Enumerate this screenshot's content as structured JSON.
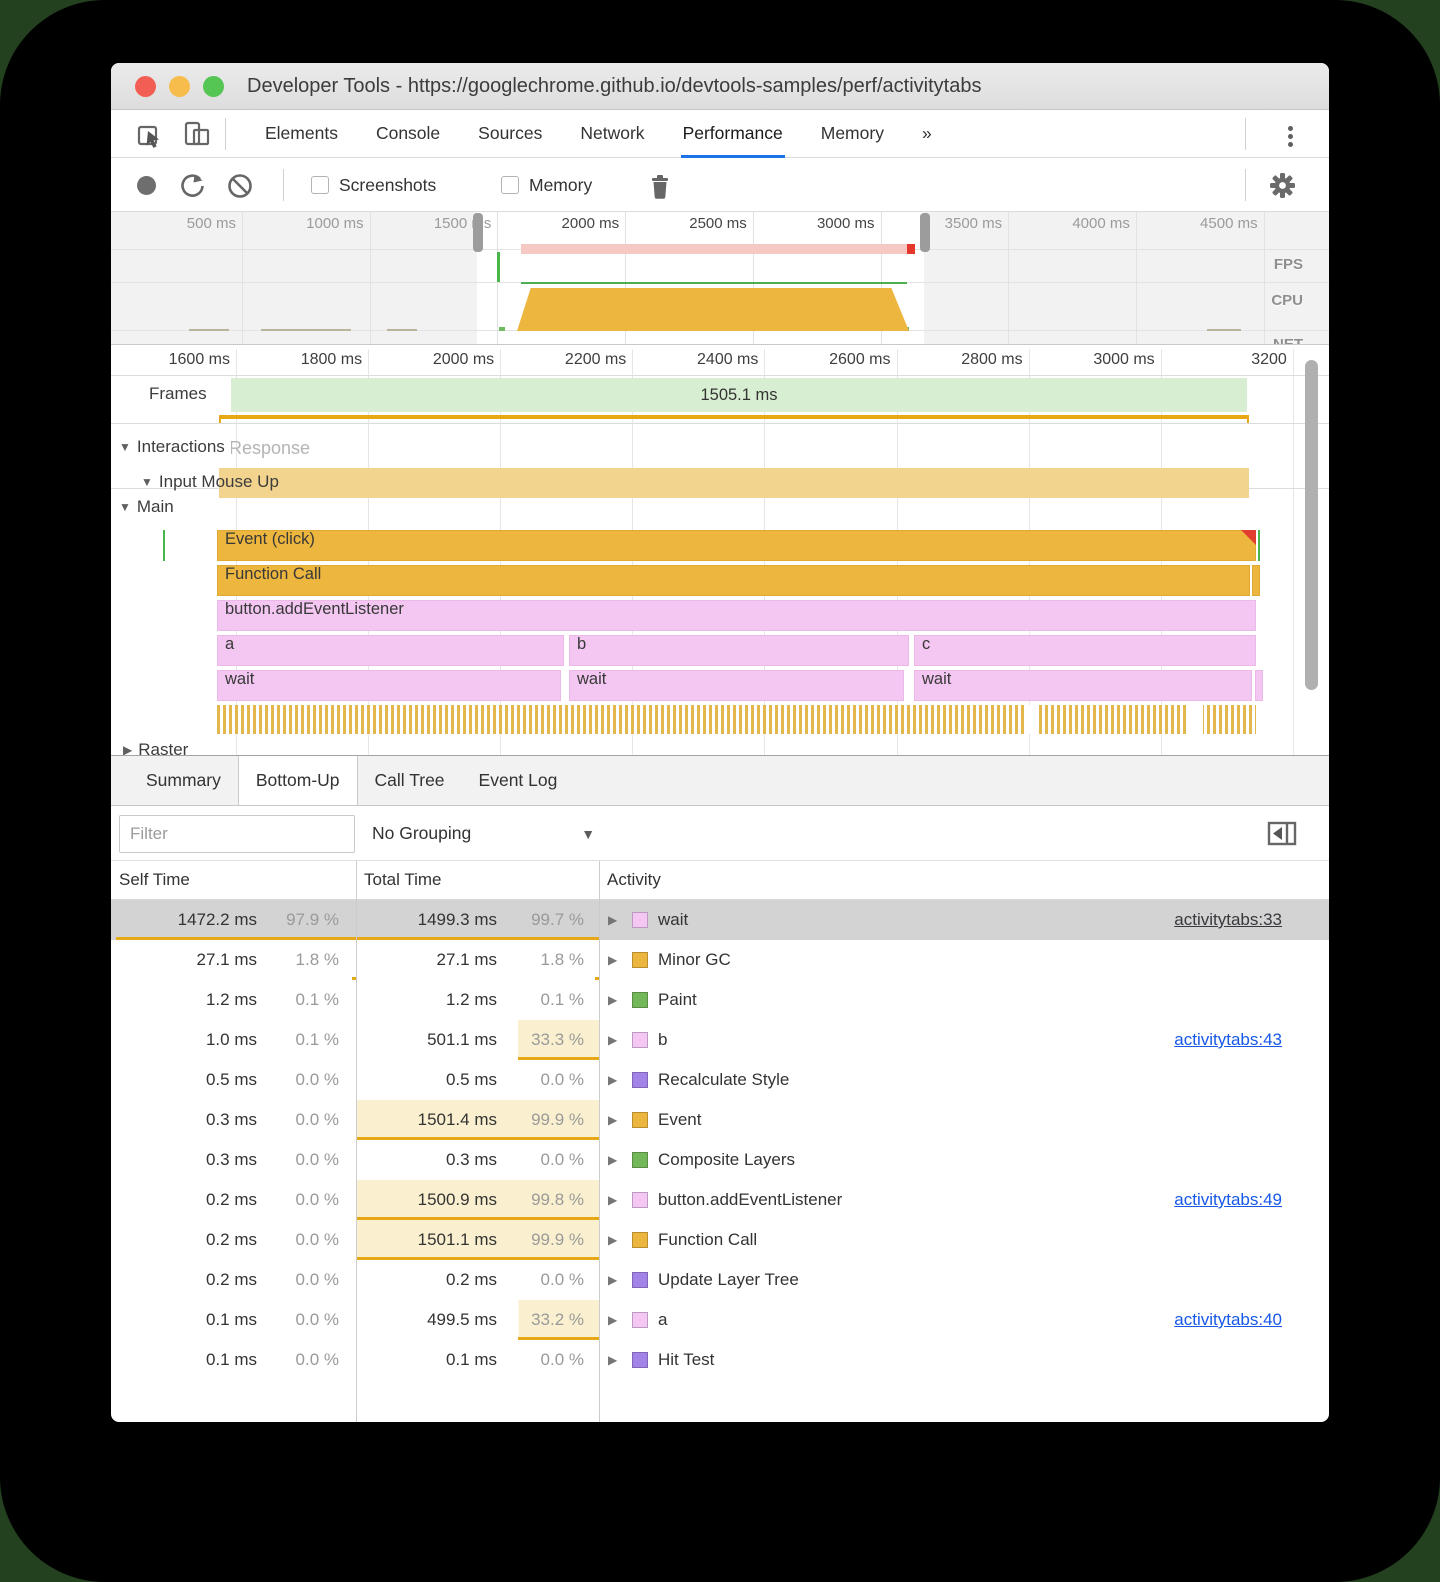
{
  "window": {
    "title": "Developer Tools - https://googlechrome.github.io/devtools-samples/perf/activitytabs"
  },
  "main_tabs": {
    "items": [
      "Elements",
      "Console",
      "Sources",
      "Network",
      "Performance",
      "Memory",
      "»"
    ],
    "active": "Performance"
  },
  "toolbar": {
    "screenshots_label": "Screenshots",
    "memory_label": "Memory"
  },
  "overview": {
    "ticks": [
      "500 ms",
      "1000 ms",
      "1500 ms",
      "2000 ms",
      "2500 ms",
      "3000 ms",
      "3500 ms",
      "4000 ms",
      "4500 ms"
    ],
    "ticks_in_selection": [
      3,
      4,
      5
    ],
    "lanes": [
      "FPS",
      "CPU",
      "NET"
    ]
  },
  "flame": {
    "ticks": [
      "1600 ms",
      "1800 ms",
      "2000 ms",
      "2200 ms",
      "2400 ms",
      "2600 ms",
      "2800 ms",
      "3000 ms",
      "3200"
    ],
    "frames_label": "Frames",
    "frames_value": "1505.1 ms",
    "interactions_label": "Interactions",
    "interactions_ghost": "Response",
    "input_label": "Input Mouse Up",
    "main_label": "Main",
    "raster_label": "Raster",
    "bars": {
      "event": "Event (click)",
      "func": "Function Call",
      "listener": "button.addEventListener",
      "a": "a",
      "b": "b",
      "c": "c",
      "wait1": "wait",
      "wait2": "wait",
      "wait3": "wait"
    }
  },
  "bottom_tabs": {
    "items": [
      "Summary",
      "Bottom-Up",
      "Call Tree",
      "Event Log"
    ],
    "active": "Bottom-Up"
  },
  "filter": {
    "placeholder": "Filter",
    "grouping": "No Grouping"
  },
  "table": {
    "headers": [
      "Self Time",
      "Total Time",
      "Activity"
    ],
    "rows": [
      {
        "self": "1472.2 ms",
        "self_pct": "97.9 %",
        "self_p": 97.9,
        "total": "1499.3 ms",
        "total_pct": "99.7 %",
        "total_p": 99.7,
        "name": "wait",
        "color": "pink",
        "link": "activitytabs:33",
        "selected": true
      },
      {
        "self": "27.1 ms",
        "self_pct": "1.8 %",
        "self_p": 1.8,
        "total": "27.1 ms",
        "total_pct": "1.8 %",
        "total_p": 1.8,
        "name": "Minor GC",
        "color": "orange",
        "link": ""
      },
      {
        "self": "1.2 ms",
        "self_pct": "0.1 %",
        "self_p": 0.1,
        "total": "1.2 ms",
        "total_pct": "0.1 %",
        "total_p": 0.1,
        "name": "Paint",
        "color": "green",
        "link": ""
      },
      {
        "self": "1.0 ms",
        "self_pct": "0.1 %",
        "self_p": 0.1,
        "total": "501.1 ms",
        "total_pct": "33.3 %",
        "total_p": 33.3,
        "name": "b",
        "color": "pink",
        "link": "activitytabs:43"
      },
      {
        "self": "0.5 ms",
        "self_pct": "0.0 %",
        "self_p": 0,
        "total": "0.5 ms",
        "total_pct": "0.0 %",
        "total_p": 0,
        "name": "Recalculate Style",
        "color": "purple",
        "link": ""
      },
      {
        "self": "0.3 ms",
        "self_pct": "0.0 %",
        "self_p": 0,
        "total": "1501.4 ms",
        "total_pct": "99.9 %",
        "total_p": 99.9,
        "name": "Event",
        "color": "orange",
        "link": ""
      },
      {
        "self": "0.3 ms",
        "self_pct": "0.0 %",
        "self_p": 0,
        "total": "0.3 ms",
        "total_pct": "0.0 %",
        "total_p": 0,
        "name": "Composite Layers",
        "color": "green",
        "link": ""
      },
      {
        "self": "0.2 ms",
        "self_pct": "0.0 %",
        "self_p": 0,
        "total": "1500.9 ms",
        "total_pct": "99.8 %",
        "total_p": 99.8,
        "name": "button.addEventListener",
        "color": "pink",
        "link": "activitytabs:49"
      },
      {
        "self": "0.2 ms",
        "self_pct": "0.0 %",
        "self_p": 0,
        "total": "1501.1 ms",
        "total_pct": "99.9 %",
        "total_p": 99.9,
        "name": "Function Call",
        "color": "orange",
        "link": ""
      },
      {
        "self": "0.2 ms",
        "self_pct": "0.0 %",
        "self_p": 0,
        "total": "0.2 ms",
        "total_pct": "0.0 %",
        "total_p": 0,
        "name": "Update Layer Tree",
        "color": "purple",
        "link": ""
      },
      {
        "self": "0.1 ms",
        "self_pct": "0.0 %",
        "self_p": 0,
        "total": "499.5 ms",
        "total_pct": "33.2 %",
        "total_p": 33.2,
        "name": "a",
        "color": "pink",
        "link": "activitytabs:40"
      },
      {
        "self": "0.1 ms",
        "self_pct": "0.0 %",
        "self_p": 0,
        "total": "0.1 ms",
        "total_pct": "0.0 %",
        "total_p": 0,
        "name": "Hit Test",
        "color": "purple",
        "link": ""
      }
    ]
  },
  "colors": {
    "accent": "#1a73e8",
    "link": "#1759e8",
    "selection": "#d3d3d3",
    "orange": "#edb63e",
    "pink": "#f3c7f1",
    "green": "#74b758",
    "purple": "#a284e8",
    "frame_green": "#d8eed2",
    "longtask_pink": "#f5c8c4",
    "longtask_red": "#e5372b"
  }
}
